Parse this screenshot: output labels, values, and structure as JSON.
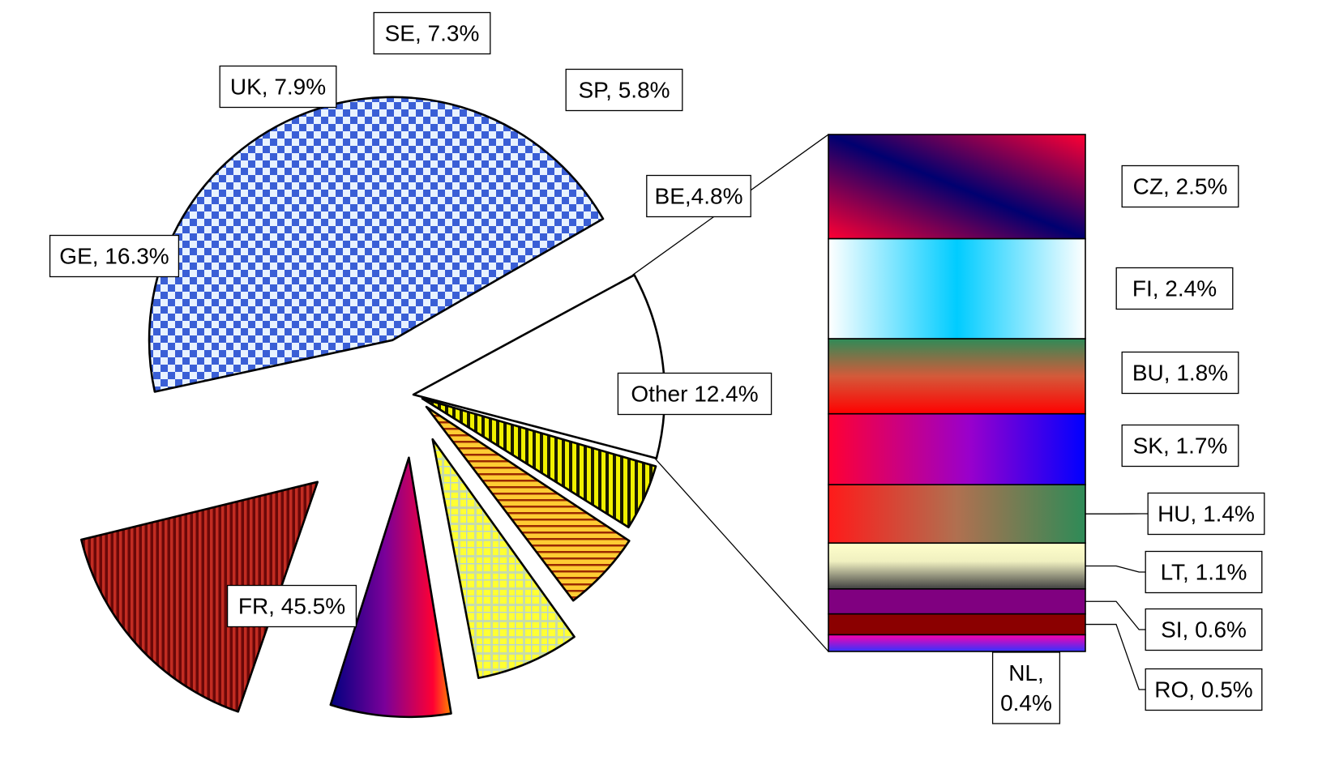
{
  "chart_data": {
    "type": "pie",
    "subtype": "bar-of-pie",
    "title": "",
    "slices": [
      {
        "key": "FR",
        "label": "FR, 45.5%",
        "value": 45.5,
        "color": "#3355cc",
        "pattern": "checker-blue"
      },
      {
        "key": "OT",
        "label": "Other 12.4%",
        "value": 12.4,
        "color": "#ffffff",
        "pattern": "none"
      },
      {
        "key": "BE",
        "label": "BE,4.8%",
        "value": 4.8,
        "color": "#e6e600",
        "pattern": "vertical-stripes-black"
      },
      {
        "key": "SP",
        "label": "SP, 5.8%",
        "value": 5.8,
        "color": "#ffcc33",
        "pattern": "horizontal-stripes-red"
      },
      {
        "key": "SE",
        "label": "SE, 7.3%",
        "value": 7.3,
        "color": "#ffff33",
        "pattern": "plaid"
      },
      {
        "key": "UK",
        "label": "UK, 7.9%",
        "value": 7.9,
        "color": "#660099",
        "pattern": "gradient-navy-purple-red-orange"
      },
      {
        "key": "GE",
        "label": "GE, 16.3%",
        "value": 16.3,
        "color": "#8b1a1a",
        "pattern": "vertical-stripes-dark-red"
      }
    ],
    "other_breakdown": [
      {
        "key": "CZ",
        "label": "CZ, 2.5%",
        "value": 2.5,
        "pattern": "diagonal-gradient-red-navy"
      },
      {
        "key": "FI",
        "label": "FI, 2.4%",
        "value": 2.4,
        "pattern": "gradient-white-cyan-white"
      },
      {
        "key": "BU",
        "label": "BU, 1.8%",
        "value": 1.8,
        "pattern": "gradient-green-red"
      },
      {
        "key": "SK",
        "label": "SK, 1.7%",
        "value": 1.7,
        "pattern": "gradient-red-purple-blue"
      },
      {
        "key": "HU",
        "label": "HU, 1.4%",
        "value": 1.4,
        "pattern": "gradient-red-green"
      },
      {
        "key": "LT",
        "label": "LT, 1.1%",
        "value": 1.1,
        "pattern": "gradient-cream-gray"
      },
      {
        "key": "SI",
        "label": "SI, 0.6%",
        "value": 0.6,
        "pattern": "solid-purple"
      },
      {
        "key": "RO",
        "label": "RO, 0.5%",
        "value": 0.5,
        "pattern": "solid-dark-red"
      },
      {
        "key": "NL",
        "label": "NL, 0.4%",
        "value": 0.4,
        "pattern": "gradient-magenta-blue"
      }
    ],
    "legend": "none",
    "data_labels": "outside"
  }
}
